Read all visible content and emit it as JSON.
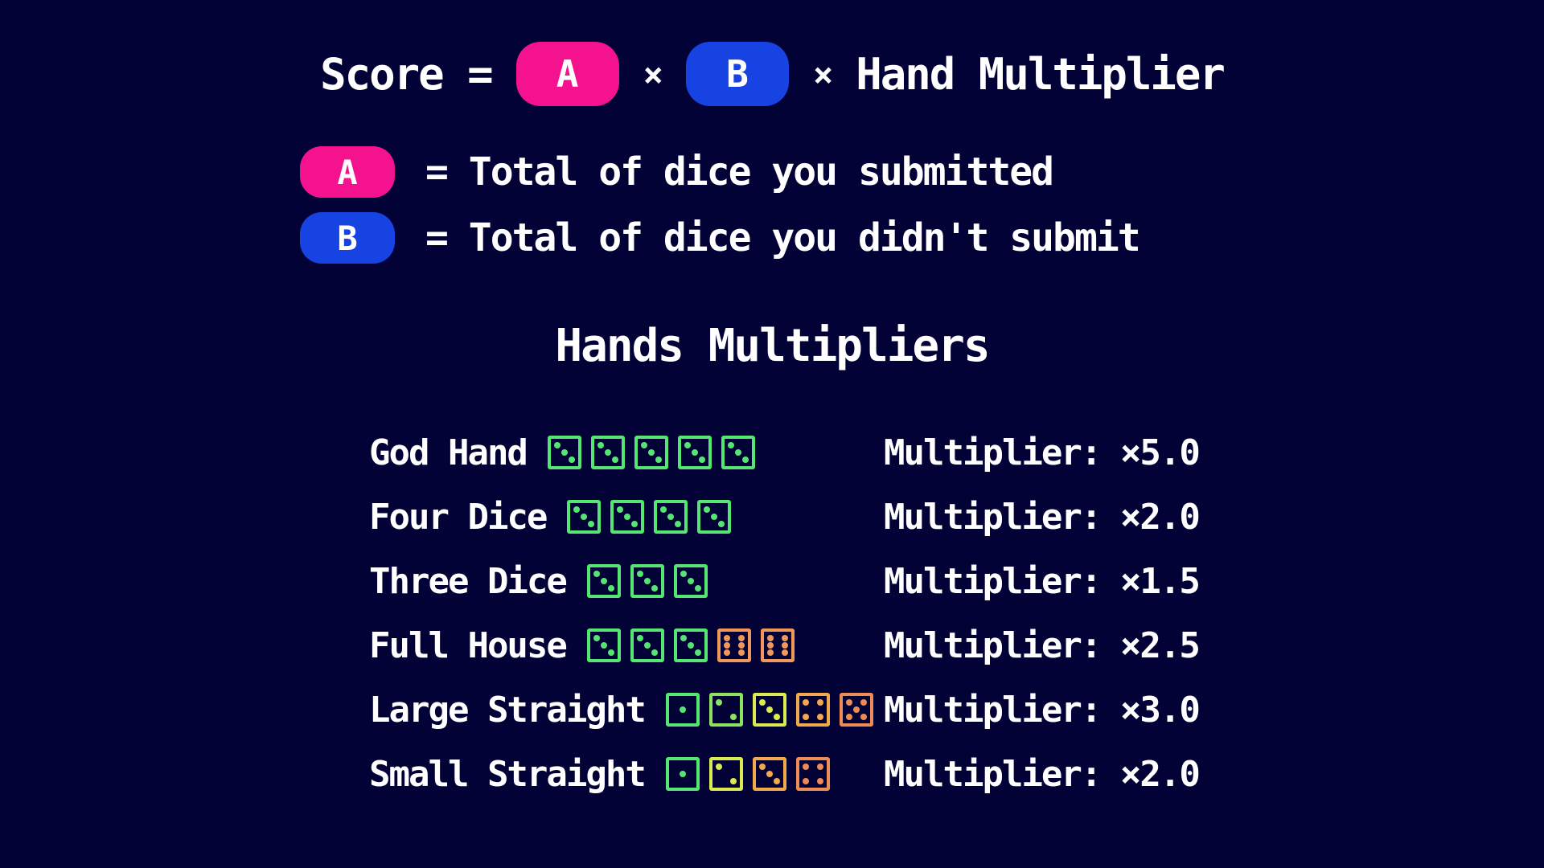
{
  "colors": {
    "background": "#020236",
    "text": "#ffffff",
    "badge_a": "#f5128e",
    "badge_b": "#1743e3",
    "green": "#55e573",
    "light_green": "#8ce35f",
    "yellow": "#dcea51",
    "amber": "#f2a94e",
    "orange": "#ee8c55",
    "full_house_orange": "#f0975c"
  },
  "formula": {
    "score_label": "Score =",
    "badge_a": "A",
    "times1": "×",
    "badge_b": "B",
    "times2": "×",
    "hand_multiplier": "Hand Multiplier"
  },
  "legend": {
    "rows": [
      {
        "badge": "A",
        "text": "= Total of dice you submitted"
      },
      {
        "badge": "B",
        "text": "= Total of dice you didn't submit"
      }
    ]
  },
  "section": {
    "title": "Hands Multipliers"
  },
  "hands": [
    {
      "name": "God Hand",
      "multiplier": "Multiplier: ×5.0",
      "dice": [
        {
          "value": 3,
          "color": "green"
        },
        {
          "value": 3,
          "color": "green"
        },
        {
          "value": 3,
          "color": "green"
        },
        {
          "value": 3,
          "color": "green"
        },
        {
          "value": 3,
          "color": "green"
        }
      ]
    },
    {
      "name": "Four Dice",
      "multiplier": "Multiplier: ×2.0",
      "dice": [
        {
          "value": 3,
          "color": "green"
        },
        {
          "value": 3,
          "color": "green"
        },
        {
          "value": 3,
          "color": "green"
        },
        {
          "value": 3,
          "color": "green"
        }
      ]
    },
    {
      "name": "Three Dice",
      "multiplier": "Multiplier: ×1.5",
      "dice": [
        {
          "value": 3,
          "color": "green"
        },
        {
          "value": 3,
          "color": "green"
        },
        {
          "value": 3,
          "color": "green"
        }
      ]
    },
    {
      "name": "Full House",
      "multiplier": "Multiplier: ×2.5",
      "dice": [
        {
          "value": 3,
          "color": "green"
        },
        {
          "value": 3,
          "color": "green"
        },
        {
          "value": 3,
          "color": "green"
        },
        {
          "value": 6,
          "color": "full_house_orange"
        },
        {
          "value": 6,
          "color": "full_house_orange"
        }
      ]
    },
    {
      "name": "Large Straight",
      "multiplier": "Multiplier: ×3.0",
      "dice": [
        {
          "value": 1,
          "color": "green"
        },
        {
          "value": 2,
          "color": "light_green"
        },
        {
          "value": 3,
          "color": "yellow"
        },
        {
          "value": 4,
          "color": "amber"
        },
        {
          "value": 5,
          "color": "orange"
        }
      ]
    },
    {
      "name": "Small Straight",
      "multiplier": "Multiplier: ×2.0",
      "dice": [
        {
          "value": 1,
          "color": "green"
        },
        {
          "value": 2,
          "color": "yellow"
        },
        {
          "value": 3,
          "color": "amber"
        },
        {
          "value": 4,
          "color": "orange"
        }
      ]
    }
  ]
}
